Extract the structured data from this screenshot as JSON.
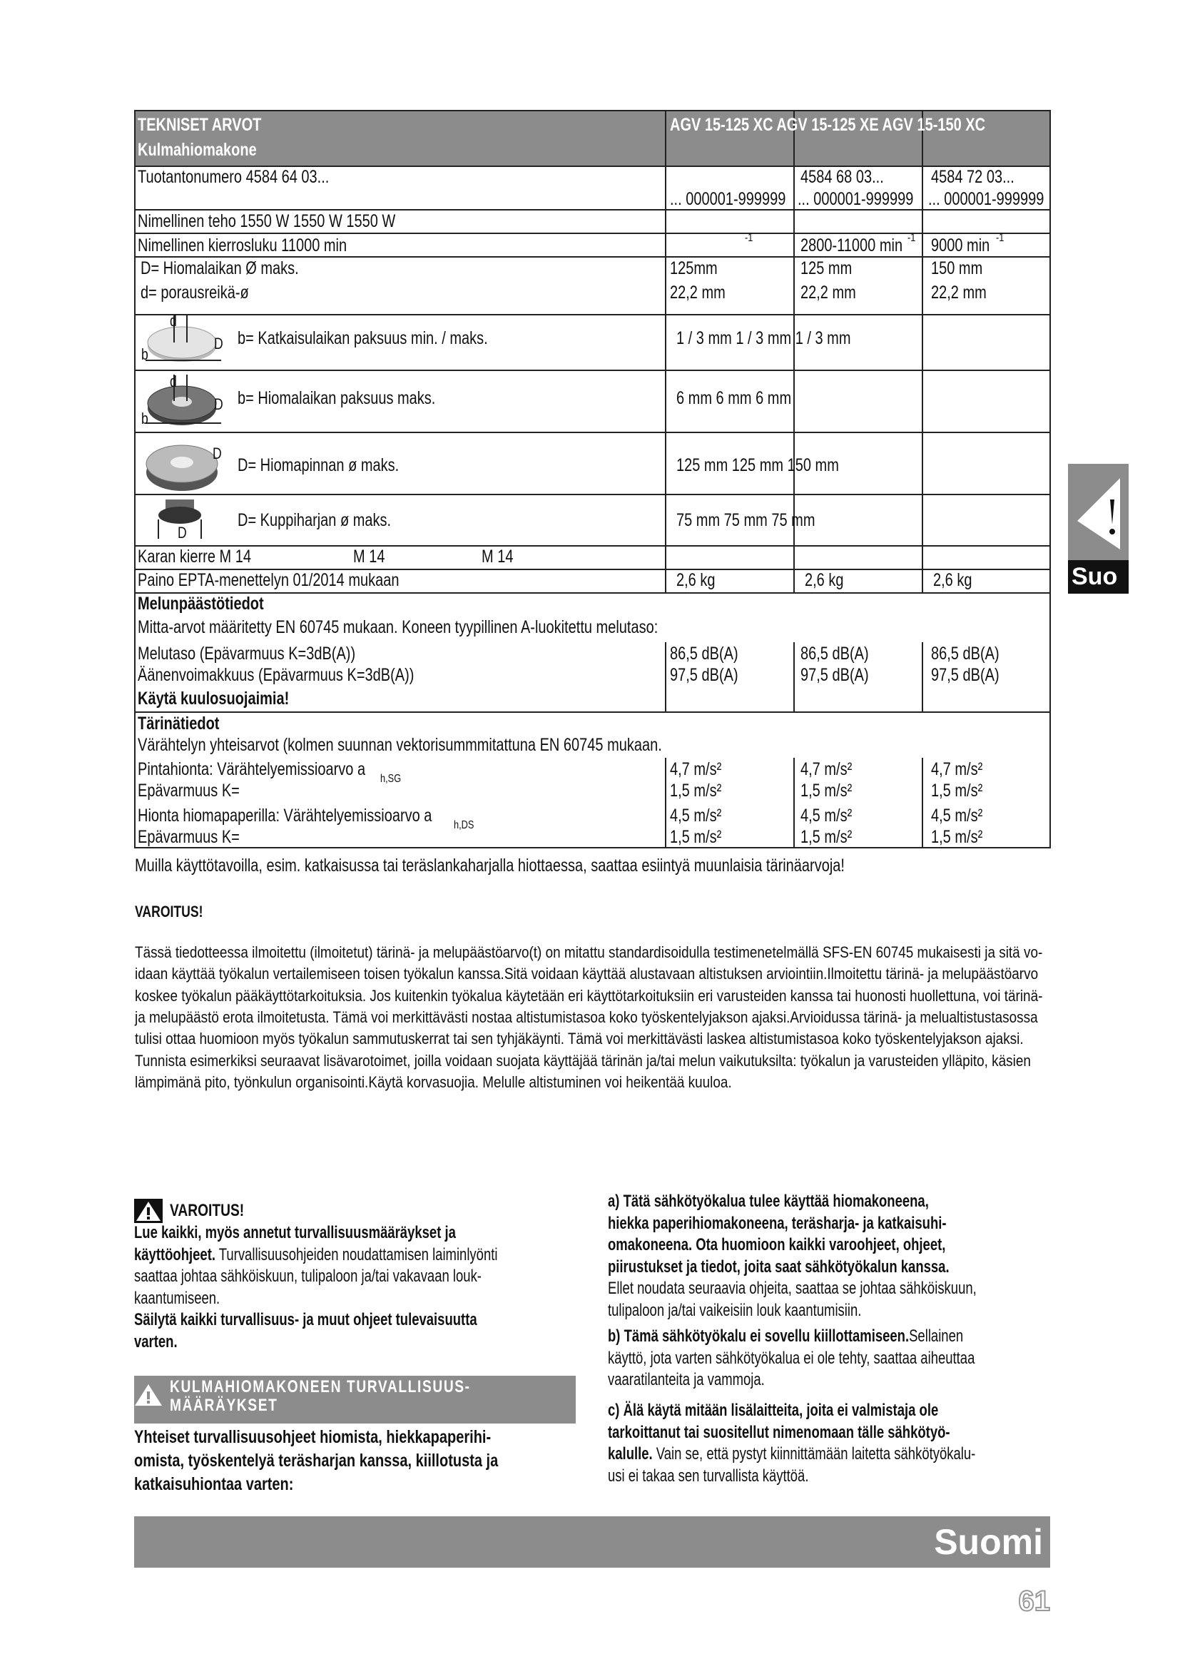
{
  "table": {
    "header": {
      "title": "TEKNISET ARVOT",
      "subtitle": "Kulmahiomakone",
      "models": "AGV 15-125 XC AGV 15-125 XE AGV 15-150 XC"
    },
    "product_number": {
      "label": "Tuotantonumero 4584 64 03...",
      "col1": "... 000001-999999",
      "col2": [
        "4584 68 03...",
        "... 000001-999999"
      ],
      "col3": [
        "4584 72 03...",
        "... 000001-999999"
      ]
    },
    "power": "Nimellinen teho 1550 W 1550 W 1550 W",
    "speed": {
      "label": "Nimellinen kierrosluku 11000 min",
      "col1_sup": "-1",
      "col2": "2800-11000 min",
      "col2_sup": "-1",
      "col3": "9000 min",
      "col3_sup": "-1"
    },
    "disc": {
      "label": [
        "D= Hiomalaikan Ø maks.",
        "d= porausreikä-ø"
      ],
      "col1": [
        "125mm",
        "22,2 mm"
      ],
      "col2": [
        "125 mm",
        "22,2 mm"
      ],
      "col3": [
        "150 mm",
        "22,2 mm"
      ]
    },
    "cutting_disc": {
      "icon": [
        "d",
        "D",
        "b"
      ],
      "label": "b= Katkaisulaikan paksuus min. / maks.",
      "values": "1 / 3 mm 1 / 3 mm 1 / 3 mm"
    },
    "grinding_disc": {
      "icon": [
        "d",
        "D",
        "b"
      ],
      "label": "b= Hiomalaikan paksuus maks.",
      "values": "6 mm 6 mm 6 mm"
    },
    "sanding_pad": {
      "icon": [
        "D"
      ],
      "label": "D= Hiomapinnan ø maks.",
      "values": "125 mm 125 mm 150 mm"
    },
    "cup_brush": {
      "icon": [
        "D"
      ],
      "label": "D= Kuppiharjan ø maks.",
      "values": "75 mm 75 mm 75 mm"
    },
    "spindle": [
      "Karan kierre M 14",
      "M 14",
      "M 14"
    ],
    "weight": {
      "label": "Paino EPTA-menettelyn 01/2014 mukaan",
      "values": [
        "2,6 kg",
        "2,6 kg",
        "2,6 kg"
      ]
    },
    "noise": {
      "title": "Melunpäästötiedot",
      "intro": "Mitta-arvot määritetty EN 60745 mukaan. Koneen tyypillinen A-luokitettu melutaso:",
      "labels": [
        "Melutaso (Epävarmuus K=3dB(A))",
        "Äänenvoimakkuus (Epävarmuus K=3dB(A))"
      ],
      "values": [
        [
          "86,5 dB(A)",
          "97,5 dB(A)"
        ],
        [
          "86,5 dB(A)",
          "97,5 dB(A)"
        ],
        [
          "86,5 dB(A)",
          "97,5 dB(A)"
        ]
      ],
      "notice": "Käytä kuulosuojaimia!"
    },
    "vibration": {
      "title": "Tärinätiedot",
      "intro": "Värähtelyn yhteisarvot (kolmen suunnan vektorisummmitattuna EN 60745 mukaan.",
      "rows": [
        {
          "label": "Pintahionta: Värähtelyemissioarvo a",
          "sub": "h,SG"
        },
        {
          "label": "Epävarmuus K="
        },
        {
          "label": "Hionta hiomapaperilla: Värähtelyemissioarvo a",
          "sub": "h,DS"
        },
        {
          "label": "Epävarmuus K="
        }
      ],
      "values": [
        [
          "4,7 m/s²",
          "1,5 m/s²",
          "4,5 m/s²",
          "1,5 m/s²"
        ],
        [
          "4,7 m/s²",
          "1,5 m/s²",
          "4,5 m/s²",
          "1,5 m/s²"
        ],
        [
          "4,7 m/s²",
          "1,5 m/s²",
          "4,5 m/s²",
          "1,5 m/s²"
        ]
      ]
    }
  },
  "vibration_note": "Muilla käyttötavoilla, esim. katkaisussa tai teräslankaharjalla hiottaessa, saattaa esiintyä muunlaisia tärinäarvoja!",
  "warning": {
    "title": "VAROITUS!",
    "lines": [
      "Tässä tiedotteessa ilmoitettu (ilmoitetut) tärinä- ja melupäästöarvo(t) on mitattu standardisoidulla testimenetelmällä SFS-EN 60745 mukaisesti ja sitä vo-",
      "idaan käyttää työkalun vertailemiseen toisen työkalun kanssa.Sitä voidaan käyttää alustavaan altistuksen arviointiin.Ilmoitettu tärinä- ja melupäästöarvo",
      "koskee työkalun pääkäyttötarkoituksia. Jos kuitenkin työkalua käytetään eri käyttötarkoituksiin eri varusteiden kanssa tai huonosti huollettuna, voi tärinä-",
      "ja melupäästö erota ilmoitetusta. Tämä voi merkittävästi nostaa altistumistasoa koko työskentelyjakson ajaksi.Arvioidussa tärinä- ja melualtistustasossa",
      "tulisi ottaa huomioon myös työkalun sammutuskerrat tai sen tyhjäkäynti. Tämä voi merkittävästi laskea altistumistasoa koko työskentelyjakson ajaksi.",
      "Tunnista esimerkiksi seuraavat lisävarotoimet, joilla voidaan suojata käyttäjää tärinän ja/tai melun vaikutuksilta: työkalun ja varusteiden ylläpito, käsien",
      "lämpimänä pito, työnkulun organisointi.Käytä korvasuojia. Melulle altistuminen voi heikentää kuuloa."
    ]
  },
  "left_column": {
    "warning_title": "VAROITUS!",
    "lines": [
      [
        {
          "text": "Lue kaikki, myös annetut turvallisuusmääräykset ja",
          "bold": true
        }
      ],
      [
        {
          "text": "käyttöohjeet.",
          "bold": true
        },
        {
          "text": " Turvallisuusohjeiden noudattamisen laiminlyönti",
          "bold": false
        }
      ],
      [
        {
          "text": "saattaa johtaa sähköiskuun, tulipaloon ja/tai vakavaan louk-",
          "bold": false
        }
      ],
      [
        {
          "text": "kaantumiseen.",
          "bold": false
        }
      ],
      [
        {
          "text": "Säilytä kaikki turvallisuus- ja muut ohjeet tulevaisuutta",
          "bold": true
        }
      ],
      [
        {
          "text": "varten.",
          "bold": true
        }
      ]
    ],
    "section_title": [
      "KULMAHIOMAKONEEN TURVALLISUUS-",
      "MÄÄRÄYKSET"
    ],
    "intro": [
      "Yhteiset turvallisuusohjeet hiomista, hiekkapaperihi-",
      "omista, työskentelyä teräsharjan kanssa, kiillotusta ja",
      "katkaisuhiontaa varten:"
    ]
  },
  "right_column": {
    "paragraphs": [
      [
        [
          {
            "text": "a) Tätä sähkötyökalua tulee käyttää hiomakoneena,",
            "bold": true
          }
        ],
        [
          {
            "text": "hiekka paperihiomakoneena, teräsharja- ja katkaisuhi-",
            "bold": true
          }
        ],
        [
          {
            "text": "omakoneena. Ota huomioon kaikki varoohjeet, ohjeet,",
            "bold": true
          }
        ],
        [
          {
            "text": "piirustukset ja tiedot, joita saat sähkötyökalun kanssa.",
            "bold": true
          }
        ],
        [
          {
            "text": "Ellet noudata seuraavia ohjeita, saattaa se johtaa sähköiskuun,",
            "bold": false
          }
        ],
        [
          {
            "text": "tulipaloon ja/tai vaikeisiin louk kaantumisiin.",
            "bold": false
          }
        ]
      ],
      [
        [
          {
            "text": "b) Tämä sähkötyökalu ei sovellu kiillottamiseen.",
            "bold": true
          },
          {
            "text": "Sellainen",
            "bold": false
          }
        ],
        [
          {
            "text": "käyttö, jota varten sähkötyökalua ei ole tehty, saattaa aiheuttaa",
            "bold": false
          }
        ],
        [
          {
            "text": "vaaratilanteita ja vammoja.",
            "bold": false
          }
        ]
      ],
      [
        [
          {
            "text": "c) Älä käytä mitään lisälaitteita, joita ei valmistaja ole",
            "bold": true
          }
        ],
        [
          {
            "text": "tarkoittanut tai suositellut nimenomaan tälle sähkötyö-",
            "bold": true
          }
        ],
        [
          {
            "text": "kalulle.",
            "bold": true
          },
          {
            "text": " Vain se, että pystyt kiinnittämään laitetta sähkötyökalu-",
            "bold": false
          }
        ],
        [
          {
            "text": "usi ei takaa sen turvallista käyttöä.",
            "bold": false
          }
        ]
      ]
    ]
  },
  "footer": {
    "language": "Suomi",
    "page": "61"
  },
  "side_tab": "Suo"
}
